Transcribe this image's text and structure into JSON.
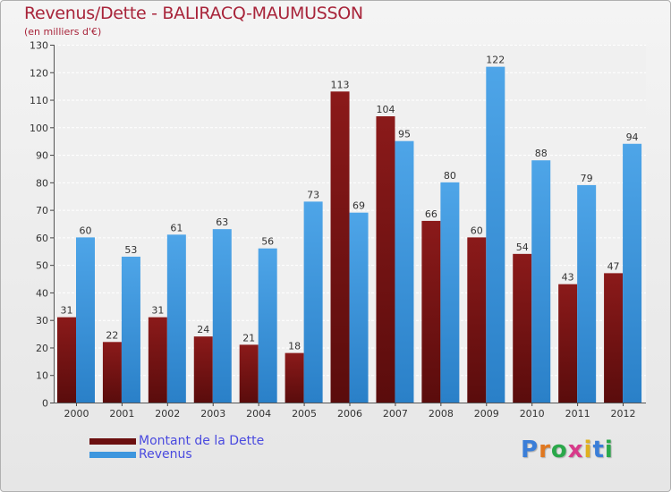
{
  "header": {
    "title": "Revenus/Dette - BALIRACQ-MAUMUSSON",
    "subtitle": "(en milliers d'€)"
  },
  "legend": {
    "debt_label": "Montant de la Dette",
    "revenue_label": "Revenus"
  },
  "logo": {
    "letters": [
      "P",
      "r",
      "o",
      "x",
      "i",
      "t",
      "i"
    ],
    "colors": [
      "#3a7ed8",
      "#e07820",
      "#2aa84a",
      "#d83a8a",
      "#e0b020",
      "#3a7ed8",
      "#2aa84a"
    ]
  },
  "colors": {
    "debt": "#8b1a1a",
    "debt_dark": "#5a0c0c",
    "revenue": "#4ea5e8",
    "revenue_dark": "#2a80c8",
    "accent": "#a8243a"
  },
  "chart_data": {
    "type": "bar",
    "title": "Revenus/Dette - BALIRACQ-MAUMUSSON",
    "ylabel": "(en milliers d'€)",
    "xlabel": "",
    "ylim": [
      0,
      130
    ],
    "yticks": [
      0,
      10,
      20,
      30,
      40,
      50,
      60,
      70,
      80,
      90,
      100,
      110,
      120,
      130
    ],
    "grid": true,
    "categories": [
      "2000",
      "2001",
      "2002",
      "2003",
      "2004",
      "2005",
      "2006",
      "2007",
      "2008",
      "2009",
      "2010",
      "2011",
      "2012"
    ],
    "series": [
      {
        "name": "Montant de la Dette",
        "values": [
          31,
          22,
          31,
          24,
          21,
          18,
          113,
          104,
          66,
          60,
          54,
          43,
          47
        ]
      },
      {
        "name": "Revenus",
        "values": [
          60,
          53,
          61,
          63,
          56,
          73,
          69,
          95,
          80,
          122,
          88,
          79,
          94
        ]
      }
    ]
  }
}
